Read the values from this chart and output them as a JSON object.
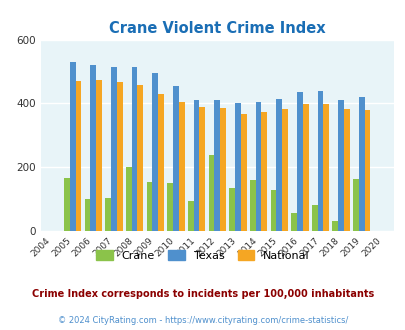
{
  "title": "Crane Violent Crime Index",
  "years": [
    2004,
    2005,
    2006,
    2007,
    2008,
    2009,
    2010,
    2011,
    2012,
    2013,
    2014,
    2015,
    2016,
    2017,
    2018,
    2019,
    2020
  ],
  "crane": [
    0,
    165,
    100,
    103,
    200,
    155,
    150,
    95,
    237,
    135,
    160,
    128,
    57,
    82,
    30,
    163,
    0
  ],
  "texas": [
    0,
    530,
    520,
    515,
    515,
    495,
    455,
    410,
    410,
    402,
    405,
    413,
    435,
    440,
    410,
    420,
    0
  ],
  "national": [
    0,
    469,
    473,
    467,
    458,
    430,
    404,
    388,
    387,
    368,
    372,
    383,
    399,
    397,
    381,
    379,
    0
  ],
  "crane_color": "#8bc34a",
  "texas_color": "#4f90cd",
  "national_color": "#f5a623",
  "bg_color": "#e8f4f8",
  "title_color": "#1a6eb5",
  "ylim": [
    0,
    600
  ],
  "yticks": [
    0,
    200,
    400,
    600
  ],
  "subtitle": "Crime Index corresponds to incidents per 100,000 inhabitants",
  "copyright": "© 2024 CityRating.com - https://www.cityrating.com/crime-statistics/",
  "subtitle_color": "#8b0000",
  "copyright_color": "#4f90cd",
  "bar_width": 0.28,
  "grid_color": "#ffffff"
}
